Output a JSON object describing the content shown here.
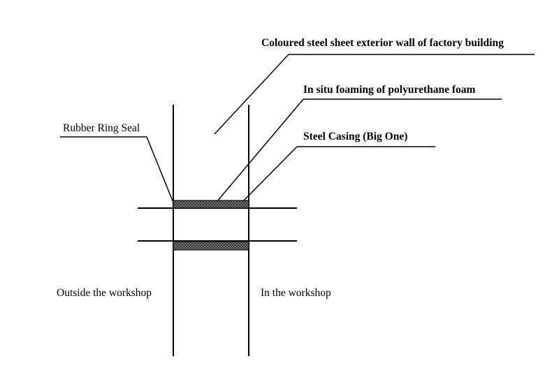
{
  "labels": {
    "wall": "Coloured steel sheet exterior wall of factory building",
    "foam": "In situ foaming of polyurethane foam",
    "rubber_seal": "Rubber Ring Seal",
    "casing": "Steel Casing (Big One)",
    "outside": "Outside the workshop",
    "inside": "In the workshop"
  },
  "colors": {
    "line": "#000000",
    "foam_fill": "#3a3a3a",
    "foam_dot": "#bdbdbd",
    "background": "#ffffff"
  }
}
